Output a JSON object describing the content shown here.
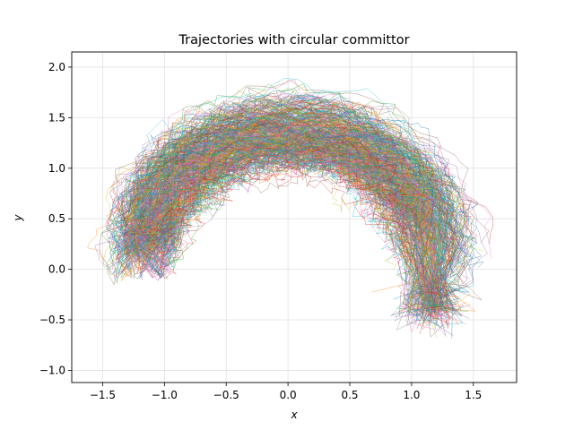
{
  "chart_data": {
    "type": "line",
    "title": "Trajectories with circular committor",
    "xlabel": "x",
    "ylabel": "y",
    "xlim": [
      -1.75,
      1.85
    ],
    "ylim": [
      -1.12,
      2.15
    ],
    "xticks": [
      -1.5,
      -1.0,
      -0.5,
      0.0,
      0.5,
      1.0,
      1.5
    ],
    "xtick_labels": [
      "−1.5",
      "−1.0",
      "−0.5",
      "0.0",
      "0.5",
      "1.0",
      "1.5"
    ],
    "yticks": [
      -1.0,
      -0.5,
      0.0,
      0.5,
      1.0,
      1.5,
      2.0
    ],
    "ytick_labels": [
      "−1.0",
      "−0.5",
      "0.0",
      "0.5",
      "1.0",
      "1.5",
      "2.0"
    ],
    "grid": true,
    "band": {
      "center": [
        0.0,
        0.0
      ],
      "x_scale": 1.2,
      "y_scale": 1.4,
      "half_width": 0.2
    },
    "start_region": {
      "center": [
        -1.1,
        0.35
      ],
      "radius": 0.2
    },
    "end_region": {
      "center": [
        1.15,
        -0.35
      ],
      "radius": 0.2
    },
    "palette": [
      "#1f77b4",
      "#ff7f0e",
      "#2ca02c",
      "#d62728",
      "#9467bd",
      "#8c564b",
      "#e377c2",
      "#7f7f7f",
      "#bcbd22",
      "#17becf"
    ]
  }
}
